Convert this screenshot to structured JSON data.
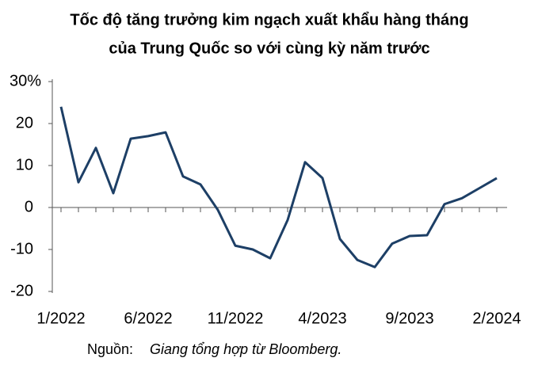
{
  "chart_data": {
    "type": "line",
    "title": [
      "Tốc độ tăng trưởng kim ngạch xuất khẩu hàng tháng",
      "của Trung Quốc so với cùng kỳ năm trước"
    ],
    "categories": [
      "1/2022",
      null,
      null,
      null,
      null,
      "6/2022",
      null,
      null,
      null,
      null,
      "11/2022",
      null,
      null,
      null,
      null,
      "4/2023",
      null,
      null,
      null,
      null,
      "9/2023",
      null,
      null,
      null,
      null,
      "2/2024"
    ],
    "series": [
      {
        "color": "#1d3f66",
        "values": [
          24.0,
          6.0,
          14.2,
          3.4,
          16.4,
          17.0,
          17.9,
          7.4,
          5.5,
          -0.6,
          -9.1,
          -10.0,
          -12.1,
          -3.0,
          10.8,
          7.0,
          -7.5,
          -12.5,
          -14.2,
          -8.6,
          -6.8,
          -6.6,
          0.8,
          2.2,
          4.6,
          7.0
        ]
      }
    ],
    "ylim": [
      -20,
      30
    ],
    "yticks": [
      -20,
      -10,
      0,
      10,
      20,
      {
        "value": 30,
        "label": "30%"
      }
    ],
    "source_label": "Nguồn:",
    "source": "Giang tổng hợp từ Bloomberg."
  }
}
